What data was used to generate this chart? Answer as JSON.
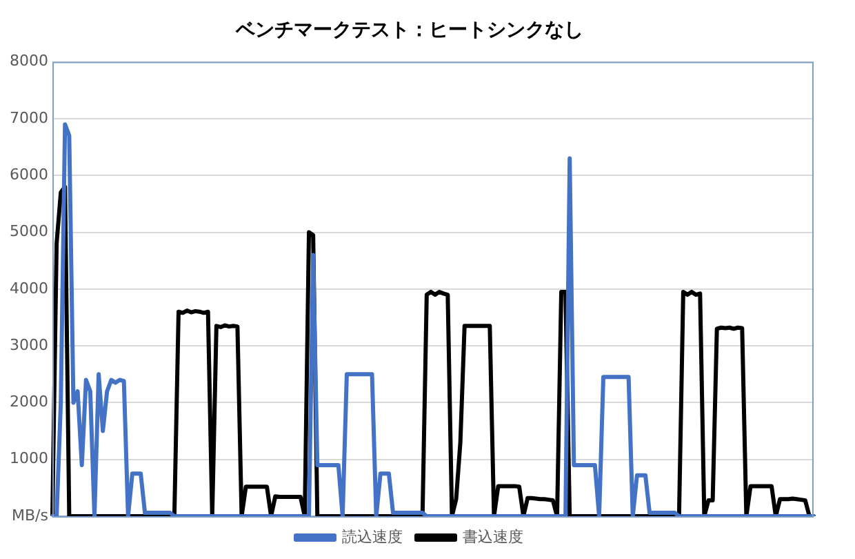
{
  "chart_data": {
    "type": "line",
    "title": "ベンチマークテスト：ヒートシンクなし",
    "categories": [
      null,
      null,
      null,
      null,
      null,
      null,
      null,
      null,
      null,
      null,
      null,
      null,
      null,
      null,
      null,
      null,
      null,
      null,
      null,
      null,
      null,
      null,
      null,
      null,
      null,
      null,
      null,
      null,
      null,
      null,
      null,
      null,
      null,
      null,
      null,
      null,
      null,
      null,
      null,
      null,
      null,
      null,
      null,
      null,
      null,
      null,
      null,
      null,
      null,
      null,
      null,
      null,
      null,
      null,
      null,
      null,
      null,
      null,
      null,
      null,
      null,
      null,
      null,
      null,
      null,
      null,
      null,
      null,
      null,
      null,
      null,
      null,
      null,
      null,
      null,
      null,
      null,
      null,
      null,
      null,
      null,
      null,
      null,
      null,
      null,
      null,
      null,
      null,
      null,
      null,
      null,
      null,
      null,
      null,
      null,
      null,
      null,
      null,
      null,
      null,
      null,
      null,
      null,
      null,
      null,
      null,
      null,
      null,
      null,
      null,
      null,
      null,
      null,
      null,
      null,
      null,
      null,
      null,
      null,
      null,
      null,
      null,
      null,
      null,
      null,
      null,
      null,
      null,
      null,
      null,
      null,
      null,
      null,
      null,
      null,
      null,
      null,
      null,
      null,
      null,
      null,
      null,
      null,
      null,
      null,
      null,
      null,
      null,
      null,
      null,
      null,
      null,
      null,
      null,
      null,
      null,
      null,
      null,
      null,
      null,
      null,
      null,
      null,
      null,
      null,
      null,
      null,
      null,
      null,
      null,
      null,
      null,
      null,
      null,
      null,
      null,
      null,
      null,
      null,
      null,
      null,
      null
    ],
    "series": [
      {
        "name": "読込速度",
        "color": "#4472c4",
        "values": [
          0,
          0,
          2000,
          6900,
          6700,
          2000,
          2200,
          900,
          2400,
          2200,
          0,
          2500,
          1500,
          2200,
          2400,
          2350,
          2400,
          2380,
          0,
          750,
          750,
          750,
          60,
          60,
          60,
          60,
          60,
          60,
          60,
          0,
          0,
          0,
          0,
          0,
          0,
          0,
          0,
          0,
          0,
          0,
          0,
          0,
          0,
          0,
          0,
          0,
          0,
          0,
          0,
          0,
          0,
          0,
          0,
          0,
          0,
          0,
          0,
          0,
          0,
          0,
          0,
          0,
          4600,
          900,
          900,
          900,
          900,
          900,
          900,
          0,
          2500,
          2500,
          2500,
          2500,
          2500,
          2500,
          2500,
          0,
          750,
          750,
          750,
          60,
          60,
          60,
          60,
          60,
          60,
          60,
          60,
          0,
          0,
          0,
          0,
          0,
          0,
          0,
          0,
          0,
          0,
          0,
          0,
          0,
          0,
          0,
          0,
          0,
          0,
          0,
          0,
          0,
          0,
          0,
          0,
          0,
          0,
          0,
          0,
          0,
          0,
          0,
          0,
          0,
          0,
          6300,
          900,
          900,
          900,
          900,
          900,
          900,
          0,
          2450,
          2450,
          2450,
          2450,
          2450,
          2450,
          2450,
          0,
          720,
          720,
          720,
          60,
          60,
          60,
          60,
          60,
          60,
          60,
          0,
          0,
          0,
          0,
          0,
          0,
          0,
          0,
          0,
          0,
          0,
          0,
          0,
          0,
          0,
          0,
          0,
          0,
          0,
          0,
          0,
          0,
          0,
          0,
          0,
          0,
          0,
          0,
          0,
          0,
          0,
          0,
          0
        ]
      },
      {
        "name": "書込速度",
        "color": "#000000",
        "values": [
          0,
          4800,
          5700,
          5800,
          0,
          0,
          0,
          0,
          0,
          0,
          0,
          0,
          0,
          0,
          0,
          0,
          0,
          0,
          0,
          0,
          0,
          0,
          0,
          0,
          0,
          0,
          0,
          0,
          0,
          0,
          3600,
          3580,
          3620,
          3590,
          3610,
          3600,
          3580,
          3600,
          0,
          3350,
          3330,
          3360,
          3340,
          3350,
          3340,
          0,
          520,
          520,
          520,
          520,
          520,
          520,
          0,
          350,
          340,
          340,
          340,
          340,
          340,
          340,
          0,
          5000,
          4950,
          0,
          0,
          0,
          0,
          0,
          0,
          0,
          0,
          0,
          0,
          0,
          0,
          0,
          0,
          0,
          0,
          0,
          0,
          0,
          0,
          0,
          0,
          0,
          0,
          0,
          0,
          3900,
          3950,
          3900,
          3950,
          3920,
          3900,
          0,
          300,
          1300,
          3350,
          3350,
          3350,
          3350,
          3350,
          3350,
          3350,
          0,
          530,
          530,
          530,
          530,
          530,
          520,
          0,
          320,
          320,
          310,
          300,
          300,
          290,
          280,
          0,
          3950,
          3950,
          0,
          0,
          0,
          0,
          0,
          0,
          0,
          0,
          0,
          0,
          0,
          0,
          0,
          0,
          0,
          0,
          0,
          0,
          0,
          0,
          0,
          0,
          0,
          0,
          0,
          0,
          0,
          3950,
          3900,
          3950,
          3900,
          3920,
          0,
          280,
          280,
          3300,
          3320,
          3310,
          3320,
          3300,
          3320,
          3310,
          0,
          530,
          530,
          530,
          530,
          530,
          530,
          0,
          300,
          300,
          300,
          310,
          300,
          290,
          280,
          0,
          0
        ]
      }
    ],
    "ylim": [
      0,
      8000
    ],
    "yticks": [
      {
        "value": 0,
        "label": "MB/s"
      },
      1000,
      2000,
      3000,
      4000,
      5000,
      6000,
      7000,
      8000
    ],
    "tick_labels": "y",
    "grid": "y",
    "legend": "bottom",
    "marker": "none",
    "line_style": "solid"
  }
}
